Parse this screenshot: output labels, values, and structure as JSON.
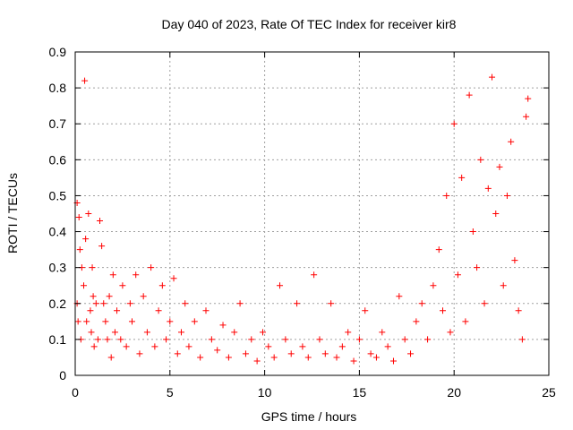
{
  "chart_data": {
    "type": "scatter",
    "title": "Day 040 of 2023, Rate Of TEC Index for receiver kir8",
    "xlabel": "GPS time / hours",
    "ylabel": "ROTI / TECUs",
    "xlim": [
      0,
      25
    ],
    "ylim": [
      0,
      0.9
    ],
    "xticks": [
      "0",
      "5",
      "10",
      "15",
      "20",
      "25"
    ],
    "yticks": [
      "0",
      "0.1",
      "0.2",
      "0.3",
      "0.4",
      "0.5",
      "0.6",
      "0.7",
      "0.8",
      "0.9"
    ],
    "grid": true,
    "marker": "plus",
    "color": "#ff0000",
    "series": [
      {
        "x": [
          0.1,
          0.1,
          0.15,
          0.2,
          0.25,
          0.3,
          0.35,
          0.45,
          0.5,
          0.55,
          0.6,
          0.7,
          0.8,
          0.85,
          0.9,
          0.95,
          1.0,
          1.1,
          1.2,
          1.3,
          1.4,
          1.5,
          1.6,
          1.7,
          1.8,
          1.9,
          2.0,
          2.1,
          2.2,
          2.4,
          2.5,
          2.7,
          2.9,
          3.0,
          3.2,
          3.4,
          3.6,
          3.8,
          4.0,
          4.2,
          4.4,
          4.6,
          4.8,
          5.0,
          5.2,
          5.4,
          5.6,
          5.8,
          6.0,
          6.3,
          6.6,
          6.9,
          7.2,
          7.5,
          7.8,
          8.1,
          8.4,
          8.7,
          9.0,
          9.3,
          9.6,
          9.9,
          10.2,
          10.5,
          10.8,
          11.1,
          11.4,
          11.7,
          12.0,
          12.3,
          12.6,
          12.9,
          13.2,
          13.5,
          13.8,
          14.1,
          14.4,
          14.7,
          15.0,
          15.3,
          15.6,
          15.9,
          16.2,
          16.5,
          16.8,
          17.1,
          17.4,
          17.7,
          18.0,
          18.3,
          18.6,
          18.9,
          19.2,
          19.4,
          19.6,
          19.8,
          20.0,
          20.2,
          20.4,
          20.6,
          20.8,
          21.0,
          21.2,
          21.4,
          21.6,
          21.8,
          22.0,
          22.2,
          22.4,
          22.6,
          22.8,
          23.0,
          23.2,
          23.4,
          23.6,
          23.8,
          23.9
        ],
        "y": [
          0.48,
          0.2,
          0.15,
          0.44,
          0.35,
          0.1,
          0.3,
          0.25,
          0.82,
          0.38,
          0.15,
          0.45,
          0.18,
          0.12,
          0.3,
          0.22,
          0.08,
          0.2,
          0.1,
          0.43,
          0.36,
          0.2,
          0.15,
          0.1,
          0.22,
          0.05,
          0.28,
          0.12,
          0.18,
          0.1,
          0.25,
          0.08,
          0.2,
          0.15,
          0.28,
          0.06,
          0.22,
          0.12,
          0.3,
          0.08,
          0.18,
          0.25,
          0.1,
          0.15,
          0.27,
          0.06,
          0.12,
          0.2,
          0.08,
          0.15,
          0.05,
          0.18,
          0.1,
          0.07,
          0.14,
          0.05,
          0.12,
          0.2,
          0.06,
          0.1,
          0.04,
          0.12,
          0.08,
          0.05,
          0.25,
          0.1,
          0.06,
          0.2,
          0.08,
          0.05,
          0.28,
          0.1,
          0.06,
          0.2,
          0.05,
          0.08,
          0.12,
          0.04,
          0.1,
          0.18,
          0.06,
          0.05,
          0.12,
          0.08,
          0.04,
          0.22,
          0.1,
          0.06,
          0.15,
          0.2,
          0.1,
          0.25,
          0.35,
          0.18,
          0.5,
          0.12,
          0.7,
          0.28,
          0.55,
          0.15,
          0.78,
          0.4,
          0.3,
          0.6,
          0.2,
          0.52,
          0.83,
          0.45,
          0.58,
          0.25,
          0.5,
          0.65,
          0.32,
          0.18,
          0.1,
          0.72,
          0.77
        ]
      }
    ]
  }
}
